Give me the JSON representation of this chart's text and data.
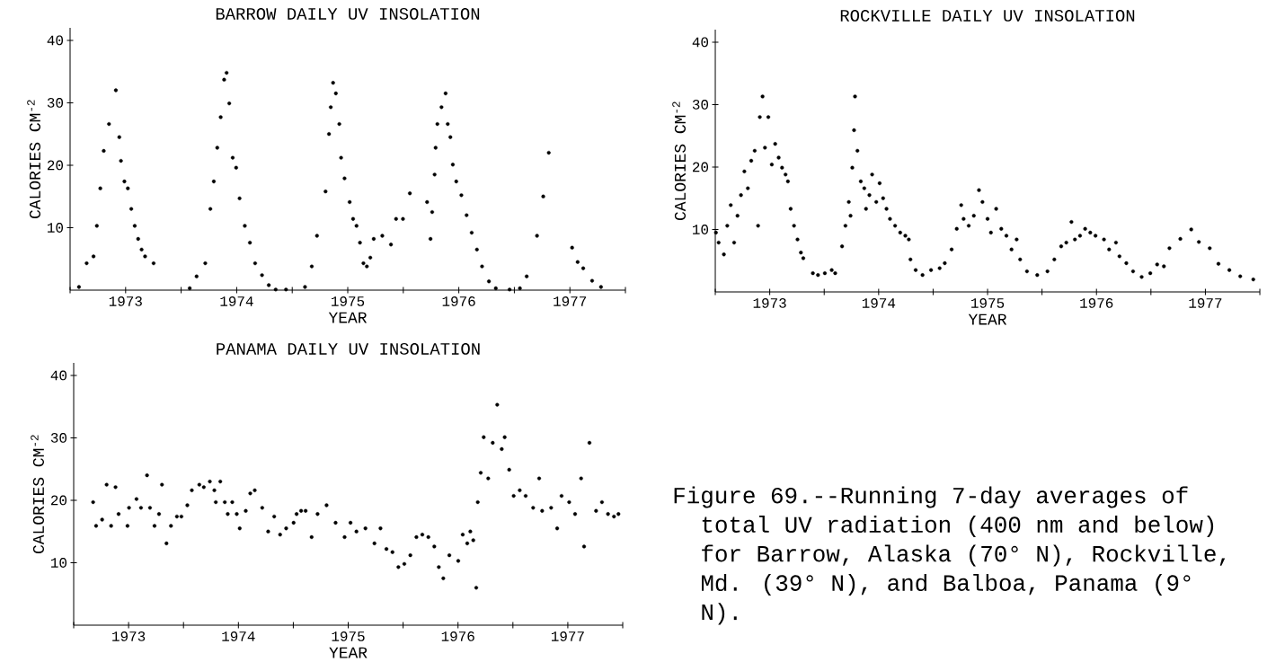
{
  "chart_data": [
    {
      "type": "scatter",
      "title": "BARROW DAILY UV INSOLATION",
      "xlabel": "YEAR",
      "ylabel": "CALORIES CM$^{-2}$",
      "color": "#000000",
      "xlim": [
        1973,
        1978
      ],
      "ylim": [
        0,
        42
      ],
      "yticks": [
        10,
        20,
        30,
        40
      ],
      "xticks": [
        {
          "value": 1973,
          "label": null
        },
        {
          "value": 1973.5,
          "label": "1973"
        },
        {
          "value": 1974,
          "label": null
        },
        {
          "value": 1974.5,
          "label": "1974"
        },
        {
          "value": 1975,
          "label": null
        },
        {
          "value": 1975.5,
          "label": "1975"
        },
        {
          "value": 1976,
          "label": null
        },
        {
          "value": 1976.5,
          "label": "1976"
        },
        {
          "value": 1977,
          "label": null
        },
        {
          "value": 1977.5,
          "label": "1977"
        },
        {
          "value": 1978,
          "label": null
        }
      ],
      "x": [
        1973.08,
        1973.149,
        1973.211,
        1973.241,
        1973.272,
        1973.303,
        1973.35,
        1973.412,
        1973.443,
        1973.458,
        1973.489,
        1973.52,
        1973.551,
        1973.582,
        1973.613,
        1973.644,
        1973.675,
        1973.752,
        1974.077,
        1974.139,
        1974.217,
        1974.263,
        1974.294,
        1974.325,
        1974.356,
        1974.387,
        1974.409,
        1974.433,
        1974.464,
        1974.495,
        1974.526,
        1974.573,
        1974.619,
        1974.666,
        1974.728,
        1974.789,
        1974.851,
        1974.944,
        1975.115,
        1975.176,
        1975.223,
        1975.3,
        1975.331,
        1975.347,
        1975.368,
        1975.393,
        1975.424,
        1975.44,
        1975.471,
        1975.517,
        1975.548,
        1975.579,
        1975.61,
        1975.641,
        1975.672,
        1975.703,
        1975.734,
        1975.811,
        1975.889,
        1975.935,
        1975.997,
        1976.059,
        1976.214,
        1976.245,
        1976.26,
        1976.282,
        1976.291,
        1976.307,
        1976.344,
        1976.381,
        1976.4,
        1976.424,
        1976.446,
        1976.477,
        1976.523,
        1976.57,
        1976.616,
        1976.663,
        1976.709,
        1976.771,
        1976.833,
        1976.957,
        1977.05,
        1977.111,
        1977.204,
        1977.26,
        1977.31,
        1977.52,
        1977.57,
        1977.62,
        1977.7,
        1977.78
      ],
      "values": [
        0.5,
        4.3,
        5.4,
        10.3,
        16.3,
        22.3,
        26.6,
        32,
        24.5,
        20.7,
        17.4,
        16.3,
        13,
        10.3,
        8.2,
        6.5,
        5.4,
        4.3,
        0.3,
        2.2,
        4.3,
        13,
        17.4,
        22.8,
        27.7,
        33.7,
        34.8,
        29.9,
        21.2,
        19.6,
        14.7,
        10.3,
        7.6,
        4.3,
        2.4,
        0.8,
        0.1,
        0.1,
        0.5,
        3.8,
        8.7,
        15.8,
        25,
        29.3,
        33.2,
        31.5,
        26.6,
        21.2,
        17.9,
        14.1,
        11.4,
        10.3,
        7.6,
        4.3,
        3.8,
        5.2,
        8.2,
        8.7,
        7.3,
        11.4,
        11.4,
        15.5,
        14.1,
        8.2,
        12.5,
        18.5,
        22.8,
        26.6,
        29.3,
        31.5,
        26.6,
        24.5,
        20.1,
        17.4,
        15.2,
        12,
        9.2,
        6.5,
        3.8,
        1.4,
        0.3,
        0.1,
        0.3,
        2.2,
        8.7,
        15,
        22,
        6.8,
        4.5,
        3.5,
        1.5,
        0.5
      ]
    },
    {
      "type": "scatter",
      "title": "ROCKVILLE DAILY UV INSOLATION",
      "xlabel": "YEAR",
      "ylabel": "CALORIES CM$^{-2}$",
      "color": "#000000",
      "xlim": [
        1973,
        1978
      ],
      "ylim": [
        0,
        42
      ],
      "yticks": [
        10,
        20,
        30,
        40
      ],
      "xticks": [
        {
          "value": 1973,
          "label": null
        },
        {
          "value": 1973.5,
          "label": "1973"
        },
        {
          "value": 1974,
          "label": null
        },
        {
          "value": 1974.5,
          "label": "1974"
        },
        {
          "value": 1975,
          "label": null
        },
        {
          "value": 1975.5,
          "label": "1975"
        },
        {
          "value": 1976,
          "label": null
        },
        {
          "value": 1976.5,
          "label": "1976"
        },
        {
          "value": 1977,
          "label": null
        },
        {
          "value": 1977.5,
          "label": "1977"
        },
        {
          "value": 1978,
          "label": null
        }
      ],
      "x": [
        1973.006,
        1973.031,
        1973.079,
        1973.11,
        1973.142,
        1973.173,
        1973.204,
        1973.236,
        1973.267,
        1973.299,
        1973.33,
        1973.362,
        1973.393,
        1973.409,
        1973.434,
        1973.456,
        1973.487,
        1973.519,
        1973.55,
        1973.582,
        1973.613,
        1973.645,
        1973.667,
        1973.692,
        1973.723,
        1973.755,
        1973.786,
        1973.808,
        1973.896,
        1973.943,
        1974.006,
        1974.069,
        1974.101,
        1974.164,
        1974.195,
        1974.226,
        1974.242,
        1974.258,
        1974.274,
        1974.283,
        1974.305,
        1974.336,
        1974.368,
        1974.384,
        1974.415,
        1974.44,
        1974.478,
        1974.509,
        1974.541,
        1974.572,
        1974.604,
        1974.651,
        1974.698,
        1974.745,
        1974.777,
        1974.792,
        1974.84,
        1974.903,
        1974.981,
        1975.06,
        1975.107,
        1975.17,
        1975.217,
        1975.258,
        1975.28,
        1975.327,
        1975.374,
        1975.421,
        1975.453,
        1975.5,
        1975.531,
        1975.579,
        1975.626,
        1975.673,
        1975.72,
        1975.767,
        1975.799,
        1975.862,
        1975.956,
        1976.05,
        1976.113,
        1976.176,
        1976.223,
        1976.27,
        1976.302,
        1976.349,
        1976.396,
        1976.443,
        1976.491,
        1976.569,
        1976.616,
        1976.679,
        1976.711,
        1976.774,
        1976.836,
        1976.915,
        1976.994,
        1977.057,
        1977.119,
        1977.17,
        1977.27,
        1977.37,
        1977.44,
        1977.54,
        1977.62,
        1977.72,
        1977.82,
        1977.94
      ],
      "values": [
        9.5,
        7.9,
        6.0,
        10.6,
        13.9,
        7.9,
        12.2,
        15.5,
        19.3,
        16.6,
        21.0,
        22.6,
        10.6,
        28.0,
        31.3,
        23.1,
        28.0,
        20.4,
        23.7,
        21.5,
        19.9,
        18.8,
        17.7,
        13.3,
        10.6,
        8.4,
        6.3,
        5.4,
        3.0,
        2.7,
        3.0,
        3.5,
        3.0,
        7.3,
        10.6,
        14.4,
        12.2,
        19.9,
        25.9,
        31.3,
        22.6,
        17.7,
        16.6,
        13.3,
        15.5,
        18.8,
        14.4,
        17.4,
        15.0,
        13.3,
        11.7,
        10.6,
        9.5,
        9.0,
        8.4,
        5.2,
        3.5,
        2.7,
        3.5,
        3.8,
        4.6,
        6.8,
        10.1,
        13.9,
        11.7,
        10.6,
        12.2,
        16.3,
        14.4,
        11.7,
        9.5,
        13.3,
        10.1,
        9.0,
        6.8,
        8.4,
        5.2,
        3.3,
        2.7,
        3.3,
        5.2,
        7.3,
        7.9,
        11.2,
        8.4,
        9.0,
        10.1,
        9.5,
        9.0,
        8.4,
        6.8,
        7.9,
        5.7,
        4.6,
        3.3,
        2.4,
        3.0,
        4.4,
        4.1,
        7,
        8.5,
        10,
        8,
        7,
        4.5,
        3.5,
        2.5,
        2
      ]
    },
    {
      "type": "scatter",
      "title": "PANAMA DAILY UV INSOLATION",
      "xlabel": "YEAR",
      "ylabel": "CALORIES CM$^{-2}$",
      "color": "#000000",
      "xlim": [
        1973,
        1978
      ],
      "ylim": [
        0,
        42
      ],
      "yticks": [
        10,
        20,
        30,
        40
      ],
      "xticks": [
        {
          "value": 1973,
          "label": null
        },
        {
          "value": 1973.5,
          "label": "1973"
        },
        {
          "value": 1974,
          "label": null
        },
        {
          "value": 1974.5,
          "label": "1974"
        },
        {
          "value": 1975,
          "label": null
        },
        {
          "value": 1975.5,
          "label": "1975"
        },
        {
          "value": 1976,
          "label": null
        },
        {
          "value": 1976.5,
          "label": "1976"
        },
        {
          "value": 1977,
          "label": null
        },
        {
          "value": 1977.5,
          "label": "1977"
        },
        {
          "value": 1978,
          "label": null
        }
      ],
      "annotations": [
        "Figure 69.--Running 7-day averages of total UV radiation (400 nm and below) for Barrow, Alaska (70° N), Rockville, Md. (39° N), and Balboa, Panama (9° N)."
      ],
      "x": [
        1973.177,
        1973.204,
        1973.259,
        1973.3,
        1973.341,
        1973.381,
        1973.409,
        1973.49,
        1973.504,
        1973.572,
        1973.613,
        1973.668,
        1973.695,
        1973.736,
        1973.777,
        1973.804,
        1973.845,
        1973.886,
        1973.94,
        1973.981,
        1974.035,
        1974.076,
        1974.144,
        1974.185,
        1974.24,
        1974.281,
        1974.294,
        1974.335,
        1974.376,
        1974.403,
        1974.444,
        1974.485,
        1974.512,
        1974.567,
        1974.608,
        1974.649,
        1974.717,
        1974.771,
        1974.826,
        1974.88,
        1974.935,
        1975.003,
        1975.071,
        1975.03,
        1975.112,
        1975.167,
        1975.221,
        1975.303,
        1975.385,
        1975.467,
        1975.521,
        1975.575,
        1975.657,
        1975.739,
        1975.794,
        1975.848,
        1975.903,
        1975.957,
        1976.011,
        1976.066,
        1976.121,
        1976.175,
        1976.23,
        1976.284,
        1976.325,
        1976.366,
        1976.421,
        1976.502,
        1976.543,
        1976.584,
        1976.612,
        1976.639,
        1976.666,
        1976.68,
        1976.707,
        1976.734,
        1976.775,
        1976.816,
        1976.857,
        1976.898,
        1976.925,
        1976.966,
        1977.007,
        1977.062,
        1977.116,
        1977.184,
        1977.239,
        1977.266,
        1977.348,
        1977.403,
        1977.443,
        1977.512,
        1977.566,
        1977.621,
        1977.648,
        1977.697,
        1977.757,
        1977.811,
        1977.866,
        1977.92,
        1977.961
      ],
      "values": [
        19.7,
        15.9,
        16.9,
        22.5,
        15.9,
        22.1,
        17.8,
        15.9,
        18.8,
        20.2,
        18.8,
        24.0,
        18.8,
        15.9,
        17.8,
        22.5,
        13.1,
        15.9,
        17.4,
        17.4,
        19.2,
        21.6,
        22.5,
        22.1,
        23.0,
        21.6,
        19.7,
        23.0,
        19.7,
        17.8,
        19.7,
        17.8,
        15.5,
        18.3,
        21.1,
        21.6,
        18.8,
        15.0,
        17.4,
        14.5,
        15.5,
        16.4,
        18.3,
        17.8,
        18.3,
        14.1,
        17.8,
        19.2,
        16.4,
        14.1,
        16.4,
        15.0,
        15.5,
        13.1,
        15.5,
        12.2,
        11.7,
        9.3,
        9.8,
        11.2,
        14.1,
        14.5,
        14.1,
        12.6,
        9.3,
        7.5,
        11.2,
        10.3,
        14.5,
        13.1,
        15.0,
        13.6,
        6.0,
        19.7,
        24.4,
        30.1,
        23.5,
        29.2,
        35.3,
        28.2,
        30.1,
        24.9,
        20.7,
        21.6,
        20.7,
        18.8,
        23.5,
        18.3,
        18.8,
        15.5,
        20.7,
        19.7,
        17.8,
        23.5,
        12.6,
        29.2,
        18.3,
        19.7,
        17.8,
        17.4,
        17.8
      ]
    }
  ]
}
